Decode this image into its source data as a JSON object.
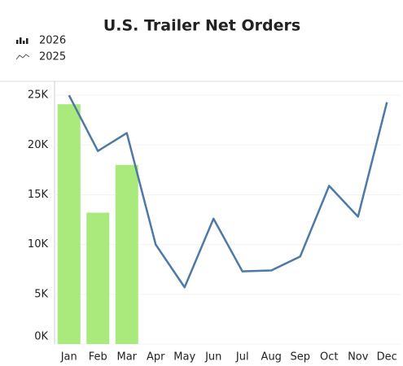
{
  "chart_data": {
    "type": "bar-line",
    "title": "U.S. Trailer Net Orders",
    "categories": [
      "Jan",
      "Feb",
      "Mar",
      "Apr",
      "May",
      "Jun",
      "Jul",
      "Aug",
      "Sep",
      "Oct",
      "Nov",
      "Dec"
    ],
    "series": [
      {
        "name": "2026",
        "type": "bar",
        "color": "#aaea7c",
        "values": [
          24100,
          13200,
          18000,
          null,
          null,
          null,
          null,
          null,
          null,
          null,
          null,
          null
        ]
      },
      {
        "name": "2025",
        "type": "line",
        "color": "#4e79a7",
        "values": [
          25000,
          19400,
          21200,
          10000,
          5700,
          12600,
          7300,
          7400,
          8800,
          15900,
          12800,
          24300
        ]
      }
    ],
    "ylim": [
      0,
      26400
    ],
    "yticks": [
      {
        "value": 0,
        "label": "0K"
      },
      {
        "value": 5000,
        "label": "5K"
      },
      {
        "value": 10000,
        "label": "10K"
      },
      {
        "value": 15000,
        "label": "15K"
      },
      {
        "value": 20000,
        "label": "20K"
      },
      {
        "value": 25000,
        "label": "25K"
      }
    ],
    "grid": true
  }
}
